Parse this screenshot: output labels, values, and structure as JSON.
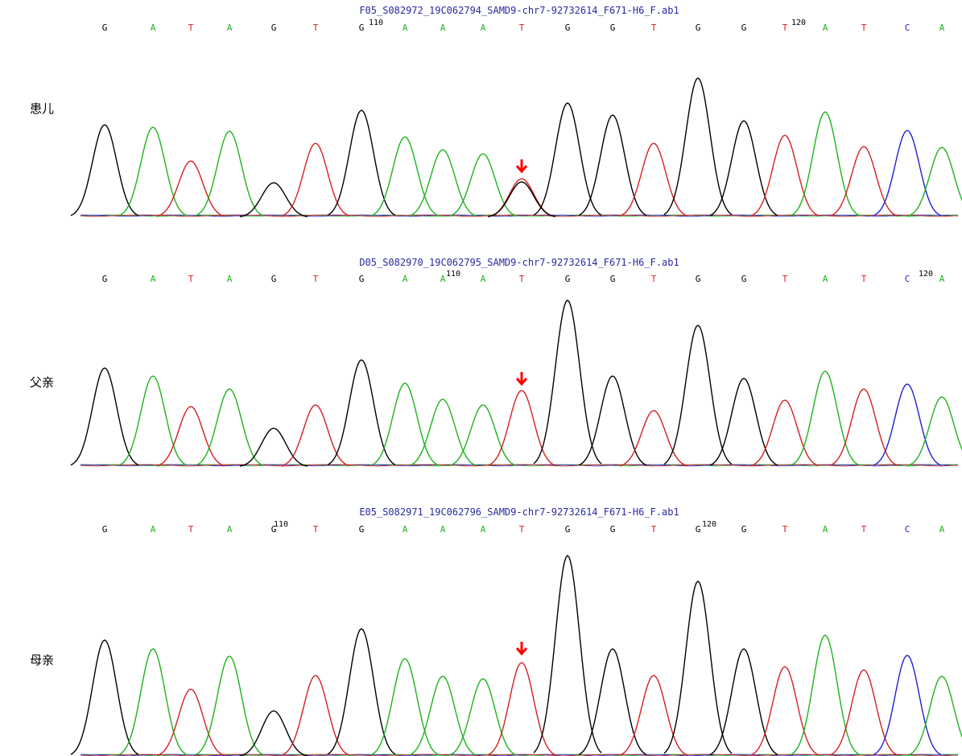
{
  "panels": [
    {
      "label": "患儿",
      "file": "F05_S082972_19C062794_SAMD9-chr7-92732614_F671-H6_F.ab1",
      "bases": [
        "G",
        "A",
        "T",
        "A",
        "G",
        "T",
        "G",
        "A",
        "A",
        "A",
        "T",
        "G",
        "G",
        "T",
        "G",
        "G",
        "T",
        "A",
        "T",
        "C",
        "A"
      ],
      "positions": [
        "110",
        "120"
      ]
    },
    {
      "label": "父亲",
      "file": "D05_S082970_19C062795_SAMD9-chr7-92732614_F671-H6_F.ab1",
      "bases": [
        "G",
        "A",
        "T",
        "A",
        "G",
        "T",
        "G",
        "A",
        "A",
        "A",
        "T",
        "G",
        "G",
        "T",
        "G",
        "G",
        "T",
        "A",
        "T",
        "C",
        "A"
      ],
      "positions": [
        "110",
        "120"
      ]
    },
    {
      "label": "母亲",
      "file": "E05_S082971_19C062796_SAMD9-chr7-92732614_F671-H6_F.ab1",
      "bases": [
        "G",
        "A",
        "T",
        "A",
        "G",
        "T",
        "G",
        "A",
        "A",
        "A",
        "T",
        "G",
        "G",
        "T",
        "G",
        "G",
        "T",
        "A",
        "T",
        "C",
        "A"
      ],
      "positions": [
        "110",
        "120"
      ]
    }
  ]
}
